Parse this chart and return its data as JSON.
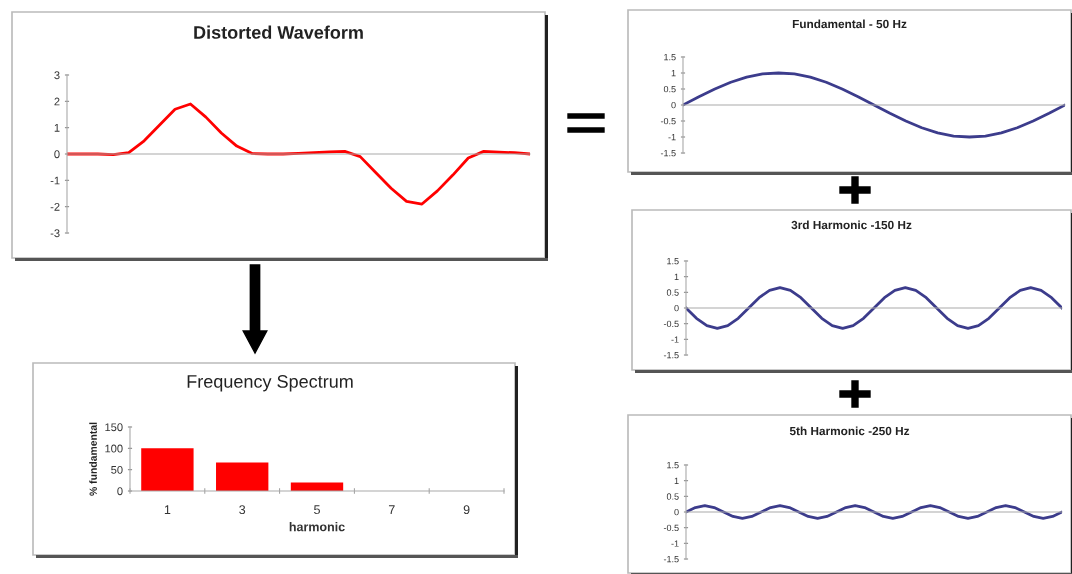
{
  "chart_data": [
    {
      "type": "line",
      "title": "Distorted Waveform",
      "categories": [
        null,
        null,
        null,
        null,
        null,
        null,
        null,
        null,
        null,
        null,
        null,
        null,
        null,
        null,
        null,
        null,
        null,
        null,
        null,
        null,
        null,
        null,
        null,
        null,
        null,
        null,
        null,
        null,
        null,
        null,
        null
      ],
      "color": "#ff0000",
      "values": [
        0,
        0,
        0,
        -0.02,
        0.05,
        0.5,
        1.1,
        1.7,
        1.9,
        1.4,
        0.8,
        0.3,
        0.02,
        0,
        0,
        0.02,
        0.05,
        0.08,
        0.1,
        -0.1,
        -0.7,
        -1.3,
        -1.8,
        -1.9,
        -1.4,
        -0.8,
        -0.15,
        0.1,
        0.07,
        0.05,
        0
      ],
      "ylim": [
        -3,
        3
      ],
      "yticks": [
        -3,
        -2,
        -1,
        0,
        1,
        2,
        3
      ]
    },
    {
      "type": "bar",
      "title": "Frequency Spectrum",
      "categories": [
        "1",
        "3",
        "5",
        "7",
        "9"
      ],
      "values": [
        100,
        67,
        20,
        null,
        null
      ],
      "color": "#ff0000",
      "xlabel": "harmonic",
      "ylabel": "% fundamental",
      "ylim": [
        0,
        150
      ],
      "yticks": [
        0,
        50,
        100,
        150
      ]
    },
    {
      "type": "line",
      "title": "Fundamental - 50 Hz",
      "categories": [
        null,
        null,
        null,
        null,
        null,
        null,
        null,
        null,
        null,
        null,
        null,
        null,
        null,
        null,
        null,
        null,
        null,
        null,
        null,
        null,
        null,
        null,
        null,
        null,
        null
      ],
      "color": "#3c3c8c",
      "values": [
        0,
        0.26,
        0.5,
        0.71,
        0.87,
        0.97,
        1,
        0.97,
        0.87,
        0.71,
        0.5,
        0.26,
        0,
        -0.26,
        -0.5,
        -0.71,
        -0.87,
        -0.97,
        -1,
        -0.97,
        -0.87,
        -0.71,
        -0.5,
        -0.26,
        0
      ],
      "ylim": [
        -1.5,
        1.5
      ],
      "yticks": [
        -1.5,
        -1,
        -0.5,
        0,
        0.5,
        1,
        1.5
      ]
    },
    {
      "type": "line",
      "title": "3rd Harmonic -150 Hz",
      "categories": [
        null,
        null,
        null,
        null,
        null,
        null,
        null,
        null,
        null,
        null,
        null,
        null,
        null,
        null,
        null,
        null,
        null,
        null,
        null,
        null,
        null,
        null,
        null,
        null,
        null,
        null,
        null,
        null,
        null,
        null,
        null,
        null,
        null,
        null,
        null,
        null,
        null
      ],
      "color": "#3c3c8c",
      "values": [
        0,
        -0.33,
        -0.56,
        -0.65,
        -0.56,
        -0.33,
        0,
        0.33,
        0.56,
        0.65,
        0.56,
        0.33,
        0,
        -0.33,
        -0.56,
        -0.65,
        -0.56,
        -0.33,
        0,
        0.33,
        0.56,
        0.65,
        0.56,
        0.33,
        0,
        -0.33,
        -0.56,
        -0.65,
        -0.56,
        -0.33,
        0,
        0.33,
        0.56,
        0.65,
        0.56,
        0.33,
        0
      ],
      "ylim": [
        -1.5,
        1.5
      ],
      "yticks": [
        -1.5,
        -1,
        -0.5,
        0,
        0.5,
        1,
        1.5
      ]
    },
    {
      "type": "line",
      "title": "5th Harmonic -250 Hz",
      "categories": [
        null,
        null,
        null,
        null,
        null,
        null,
        null,
        null,
        null,
        null,
        null,
        null,
        null,
        null,
        null,
        null,
        null,
        null,
        null,
        null,
        null,
        null,
        null,
        null,
        null,
        null,
        null,
        null,
        null,
        null,
        null,
        null,
        null,
        null,
        null,
        null,
        null,
        null,
        null,
        null,
        null
      ],
      "color": "#3c3c8c",
      "values": [
        0,
        0.14,
        0.2,
        0.14,
        0,
        -0.14,
        -0.2,
        -0.14,
        0,
        0.14,
        0.2,
        0.14,
        0,
        -0.14,
        -0.2,
        -0.14,
        0,
        0.14,
        0.2,
        0.14,
        0,
        -0.14,
        -0.2,
        -0.14,
        0,
        0.14,
        0.2,
        0.14,
        0,
        -0.14,
        -0.2,
        -0.14,
        0,
        0.14,
        0.2,
        0.14,
        0,
        -0.14,
        -0.2,
        -0.14,
        0
      ],
      "ylim": [
        -1.5,
        1.5
      ],
      "yticks": [
        -1.5,
        -1,
        -0.5,
        0,
        0.5,
        1,
        1.5
      ]
    }
  ]
}
